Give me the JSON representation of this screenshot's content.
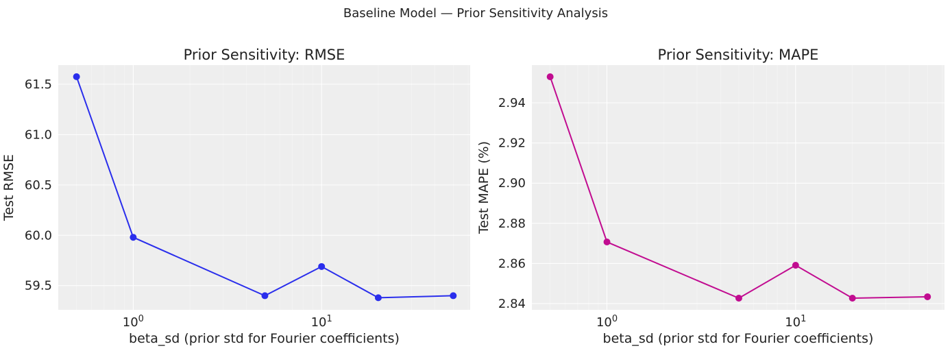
{
  "suptitle": "Baseline Model — Prior Sensitivity Analysis",
  "chart_data": [
    {
      "type": "line",
      "title": "Prior Sensitivity: RMSE",
      "xlabel": "beta_sd (prior std for Fourier coefficients)",
      "ylabel": "Test RMSE",
      "xscale": "log",
      "xlim": [
        0.4,
        61.5
      ],
      "ylim": [
        59.26,
        61.69
      ],
      "xticks": [
        1,
        10
      ],
      "xtick_labels": [
        [
          "10",
          "0"
        ],
        [
          "10",
          "1"
        ]
      ],
      "yticks": [
        59.5,
        60.0,
        60.5,
        61.0,
        61.5
      ],
      "ytick_labels": [
        "59.5",
        "60.0",
        "60.5",
        "61.0",
        "61.5"
      ],
      "grid": true,
      "color": "#2a2eec",
      "x": [
        0.5,
        1,
        5,
        10,
        20,
        50
      ],
      "y": [
        61.575,
        59.98,
        59.4,
        59.69,
        59.38,
        59.4
      ]
    },
    {
      "type": "line",
      "title": "Prior Sensitivity: MAPE",
      "xlabel": "beta_sd (prior std for Fourier coefficients)",
      "ylabel": "Test MAPE (%)",
      "xscale": "log",
      "xlim": [
        0.4,
        61.5
      ],
      "ylim": [
        2.8369,
        2.9588
      ],
      "xticks": [
        1,
        10
      ],
      "xtick_labels": [
        [
          "10",
          "0"
        ],
        [
          "10",
          "1"
        ]
      ],
      "yticks": [
        2.84,
        2.86,
        2.88,
        2.9,
        2.92,
        2.94
      ],
      "ytick_labels": [
        "2.84",
        "2.86",
        "2.88",
        "2.90",
        "2.92",
        "2.94"
      ],
      "grid": true,
      "color": "#c10c90",
      "x": [
        0.5,
        1,
        5,
        10,
        20,
        50
      ],
      "y": [
        2.953,
        2.8707,
        2.8427,
        2.8591,
        2.8427,
        2.8434
      ]
    }
  ]
}
